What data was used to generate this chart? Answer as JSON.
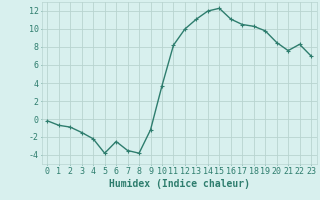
{
  "x": [
    0,
    1,
    2,
    3,
    4,
    5,
    6,
    7,
    8,
    9,
    10,
    11,
    12,
    13,
    14,
    15,
    16,
    17,
    18,
    19,
    20,
    21,
    22,
    23
  ],
  "y": [
    -0.2,
    -0.7,
    -0.9,
    -1.5,
    -2.2,
    -3.8,
    -2.5,
    -3.5,
    -3.8,
    -1.2,
    3.7,
    8.2,
    10.0,
    11.1,
    12.0,
    12.3,
    11.1,
    10.5,
    10.3,
    9.8,
    8.5,
    7.6,
    8.3,
    7.0
  ],
  "line_color": "#2e7d6e",
  "marker": "+",
  "marker_size": 3,
  "bg_color": "#d8f0ee",
  "grid_color": "#b8d4d0",
  "xlabel": "Humidex (Indice chaleur)",
  "xlim": [
    -0.5,
    23.5
  ],
  "ylim": [
    -5,
    13
  ],
  "yticks": [
    -4,
    -2,
    0,
    2,
    4,
    6,
    8,
    10,
    12
  ],
  "xtick_labels": [
    "0",
    "1",
    "2",
    "3",
    "4",
    "5",
    "6",
    "7",
    "8",
    "9",
    "10",
    "11",
    "12",
    "13",
    "14",
    "15",
    "16",
    "17",
    "18",
    "19",
    "20",
    "21",
    "22",
    "23"
  ],
  "xlabel_fontsize": 7,
  "tick_fontsize": 6,
  "line_width": 1.0
}
